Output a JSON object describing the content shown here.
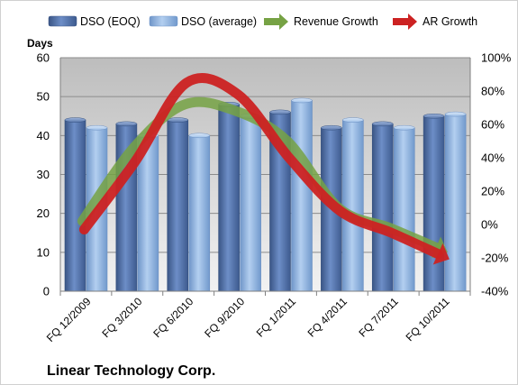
{
  "chart_data": {
    "type": "bar",
    "categories": [
      "FQ 12/2009",
      "FQ 3/2010",
      "FQ 6/2010",
      "FQ 9/2010",
      "FQ 1/2011",
      "FQ 4/2011",
      "FQ 7/2011",
      "FQ 10/2011"
    ],
    "series": [
      {
        "name": "DSO (EOQ)",
        "type": "bar",
        "axis": "left",
        "color": "#4f6ea8",
        "values": [
          44,
          43,
          44,
          48,
          46,
          42,
          43,
          45
        ]
      },
      {
        "name": "DSO (average)",
        "type": "bar",
        "axis": "left",
        "color": "#8fb4e3",
        "values": [
          42,
          40,
          40,
          45,
          49,
          44,
          42,
          45.5
        ]
      },
      {
        "name": "Revenue Growth",
        "type": "line",
        "axis": "right",
        "color": "#76a244",
        "values": [
          0.02,
          0.46,
          0.72,
          0.68,
          0.5,
          0.1,
          -0.02,
          -0.15
        ]
      },
      {
        "name": "AR Growth",
        "type": "line",
        "axis": "right",
        "color": "#cc2222",
        "values": [
          -0.03,
          0.38,
          0.85,
          0.78,
          0.4,
          0.08,
          -0.05,
          -0.19
        ]
      }
    ],
    "ylabel": "Days",
    "ylim": [
      0,
      60
    ],
    "yticks": [
      0,
      10,
      20,
      30,
      40,
      50,
      60
    ],
    "y2lim": [
      -0.4,
      1.0
    ],
    "y2ticks": [
      "-40%",
      "-20%",
      "0%",
      "20%",
      "40%",
      "60%",
      "80%",
      "100%"
    ],
    "legend_position": "top",
    "grid": true,
    "annotation": "Linear Technology Corp."
  }
}
